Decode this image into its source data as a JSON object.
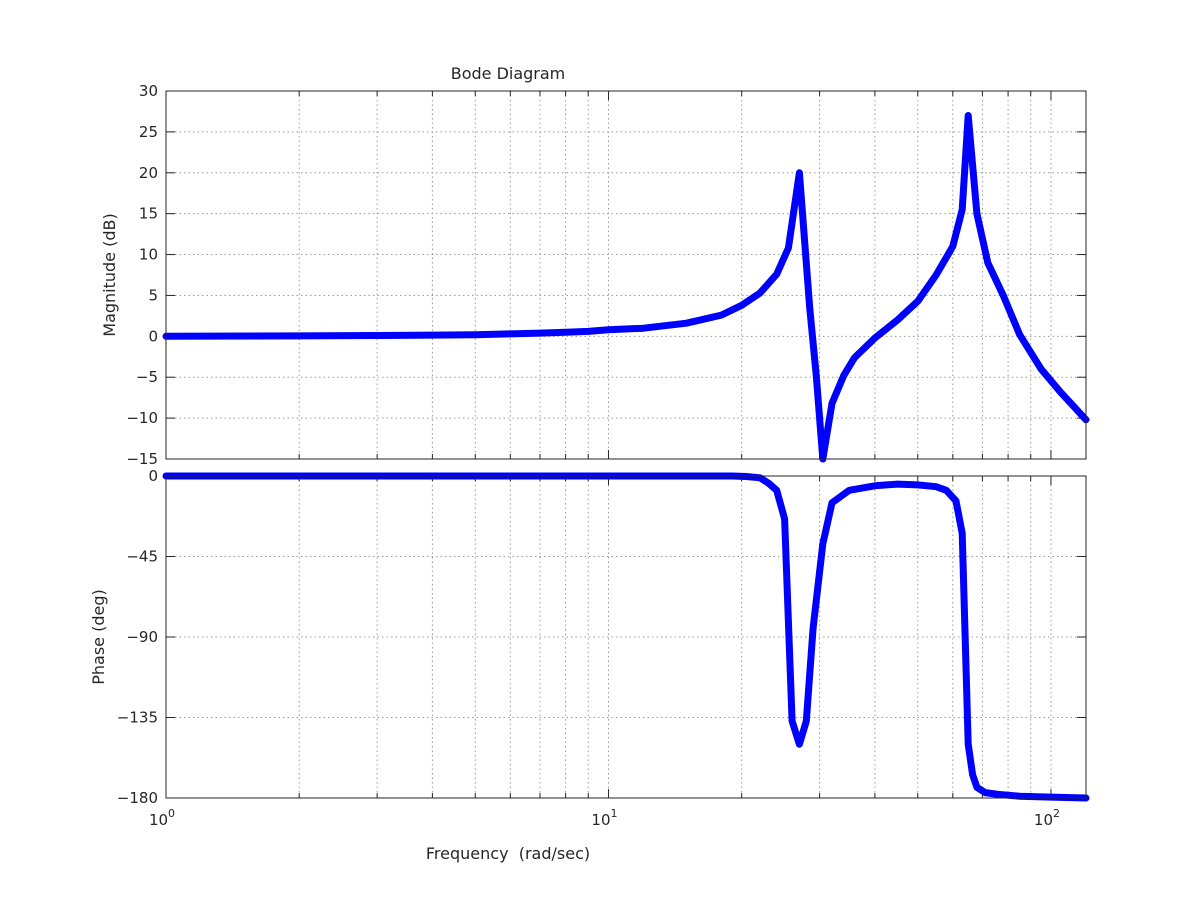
{
  "chart_data": {
    "type": "line",
    "title": "Bode Diagram",
    "xlabel": "Frequency  (rad/sec)",
    "xscale": "log",
    "xlim": [
      1,
      120
    ],
    "x_ticks": [
      {
        "value": 1,
        "base": "10",
        "exp": "0"
      },
      {
        "value": 10,
        "base": "10",
        "exp": "1"
      },
      {
        "value": 100,
        "base": "10",
        "exp": "2"
      }
    ],
    "grid": true,
    "line_color": "#0000ff",
    "panels": [
      {
        "name": "magnitude",
        "ylabel": "Magnitude (dB)",
        "ylim": [
          -15,
          30
        ],
        "yticks": [
          "30",
          "25",
          "20",
          "15",
          "10",
          "5",
          "0",
          "−5",
          "−10",
          "−15"
        ],
        "ytick_values": [
          30,
          25,
          20,
          15,
          10,
          5,
          0,
          -5,
          -10,
          -15
        ],
        "x": [
          1,
          2,
          3,
          4,
          5,
          6,
          7,
          8,
          9,
          10,
          12,
          15,
          18,
          20,
          22,
          24,
          25.5,
          27,
          28.5,
          29.5,
          30.5,
          32,
          34,
          36,
          40,
          45,
          50,
          55,
          60,
          63,
          65,
          68,
          72,
          78,
          85,
          95,
          105,
          120
        ],
        "y": [
          0,
          0.05,
          0.1,
          0.15,
          0.2,
          0.3,
          0.4,
          0.5,
          0.6,
          0.8,
          1.0,
          1.6,
          2.6,
          3.8,
          5.3,
          7.6,
          10.8,
          20.0,
          3.5,
          -5.0,
          -15.0,
          -8.2,
          -4.8,
          -2.6,
          -0.2,
          2.0,
          4.3,
          7.5,
          11.0,
          15.5,
          27.0,
          15.0,
          9.0,
          5.0,
          0.2,
          -4.0,
          -6.8,
          -10.2
        ]
      },
      {
        "name": "phase",
        "ylabel": "Phase (deg)",
        "ylim": [
          -180,
          0
        ],
        "yticks": [
          "0",
          "−45",
          "−90",
          "−135",
          "−180"
        ],
        "ytick_values": [
          0,
          -45,
          -90,
          -135,
          -180
        ],
        "x": [
          1,
          5,
          10,
          15,
          19,
          20.5,
          22,
          23,
          24,
          25,
          26,
          27,
          28,
          29,
          30.5,
          32,
          35,
          40,
          45,
          50,
          55,
          58,
          61,
          63,
          65,
          66.5,
          68,
          71,
          76,
          85,
          100,
          120
        ],
        "y": [
          0,
          0,
          0,
          0,
          0,
          -0.3,
          -1.0,
          -4.0,
          -8.0,
          -24.0,
          -137.0,
          -150.0,
          -137.0,
          -85.0,
          -38.0,
          -15.0,
          -8.0,
          -5.5,
          -4.5,
          -5.0,
          -6.0,
          -8.0,
          -14.0,
          -32.0,
          -150.0,
          -167.0,
          -174.0,
          -177.0,
          -178.0,
          -179.0,
          -179.5,
          -180.0
        ]
      }
    ]
  }
}
